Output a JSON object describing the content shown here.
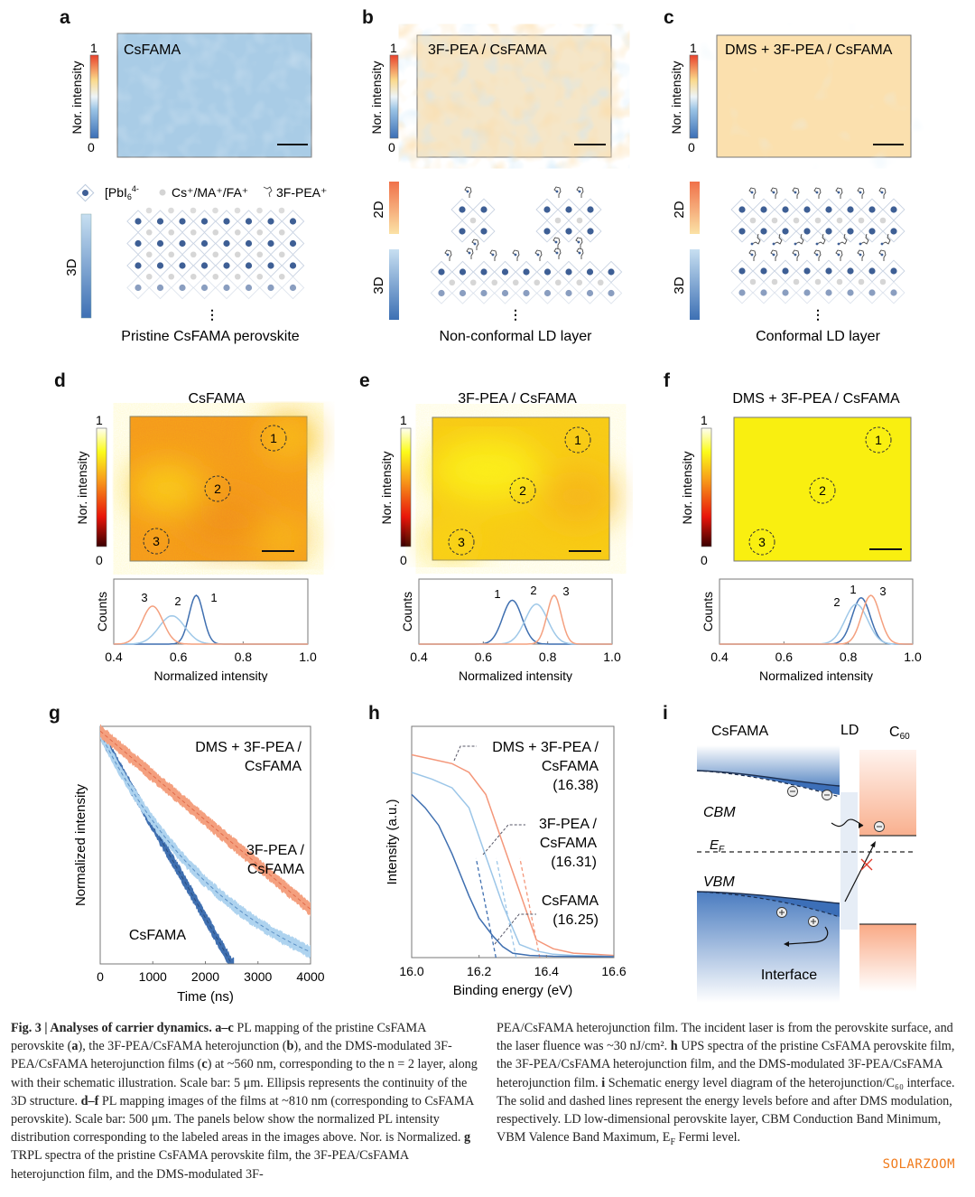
{
  "panels": {
    "a": {
      "label": "a",
      "title": "CsFAMA",
      "cbar_label": "Nor. intensity",
      "cbar_max": "1",
      "cbar_min": "0",
      "schematic_caption": "Pristine CsFAMA perovskite",
      "bar_labels": [
        "3D"
      ],
      "ellipsis": "⋮"
    },
    "b": {
      "label": "b",
      "title": "3F-PEA / CsFAMA",
      "cbar_label": "Nor. intensity",
      "cbar_max": "1",
      "cbar_min": "0",
      "schematic_caption": "Non-conformal LD layer",
      "bar_labels": [
        "2D",
        "3D"
      ],
      "ellipsis": "⋮"
    },
    "c": {
      "label": "c",
      "title": "DMS + 3F-PEA / CsFAMA",
      "cbar_label": "Nor. intensity",
      "cbar_max": "1",
      "cbar_min": "0",
      "schematic_caption": "Conformal LD layer",
      "bar_labels": [
        "2D",
        "3D"
      ],
      "ellipsis": "⋮"
    },
    "d": {
      "label": "d",
      "title": "CsFAMA",
      "cbar_label": "Nor. intensity",
      "cbar_max": "1",
      "cbar_min": "0",
      "regions": [
        "1",
        "2",
        "3"
      ]
    },
    "e": {
      "label": "e",
      "title": "3F-PEA / CsFAMA",
      "cbar_label": "Nor. intensity",
      "cbar_max": "1",
      "cbar_min": "0",
      "regions": [
        "1",
        "2",
        "3"
      ]
    },
    "f": {
      "label": "f",
      "title": "DMS + 3F-PEA / CsFAMA",
      "cbar_label": "Nor. intensity",
      "cbar_max": "1",
      "cbar_min": "0",
      "regions": [
        "1",
        "2",
        "3"
      ]
    },
    "g": {
      "label": "g"
    },
    "h": {
      "label": "h"
    },
    "i": {
      "label": "i",
      "columns": [
        "CsFAMA",
        "LD",
        "C"
      ],
      "c60_sub": "60",
      "cbm": "CBM",
      "vbm": "VBM",
      "ef": "E",
      "ef_sub": "F",
      "interface": "Interface",
      "electron": "−",
      "hole": "+"
    }
  },
  "legend": {
    "pbi6": "[PbI",
    "pbi6_sub": "6",
    "pbi6_sup": "4-",
    "cation": "Cs⁺/MA⁺/FA⁺",
    "spacer": "3F-PEA⁺"
  },
  "colors": {
    "blue_dark": "#3f6fb0",
    "blue_light": "#9fc8e8",
    "orange": "#f4a07f",
    "orange_dark": "#f07a5a"
  },
  "chart_data": [
    {
      "id": "d-hist",
      "type": "line",
      "xlabel": "Normalized intensity",
      "ylabel": "Counts",
      "xlim": [
        0.4,
        1.0
      ],
      "xticks": [
        "0.4",
        "0.6",
        "0.8",
        "1.0"
      ],
      "series": [
        {
          "name": "1",
          "color": "#3f6fb0",
          "peak": 0.655,
          "width": 0.022,
          "height": 1.0
        },
        {
          "name": "2",
          "color": "#9fc8e8",
          "peak": 0.58,
          "width": 0.04,
          "height": 0.58
        },
        {
          "name": "3",
          "color": "#f4a07f",
          "peak": 0.52,
          "width": 0.032,
          "height": 0.78
        }
      ]
    },
    {
      "id": "e-hist",
      "type": "line",
      "xlabel": "Normalized intensity",
      "ylabel": "Counts",
      "xlim": [
        0.4,
        1.0
      ],
      "xticks": [
        "0.4",
        "0.6",
        "0.8",
        "1.0"
      ],
      "series": [
        {
          "name": "1",
          "color": "#3f6fb0",
          "peak": 0.69,
          "width": 0.03,
          "height": 0.9
        },
        {
          "name": "2",
          "color": "#9fc8e8",
          "peak": 0.765,
          "width": 0.035,
          "height": 0.82
        },
        {
          "name": "3",
          "color": "#f4a07f",
          "peak": 0.82,
          "width": 0.022,
          "height": 1.0
        }
      ]
    },
    {
      "id": "f-hist",
      "type": "line",
      "xlabel": "Normalized intensity",
      "ylabel": "Counts",
      "xlim": [
        0.4,
        1.0
      ],
      "xticks": [
        "0.4",
        "0.6",
        "0.8",
        "1.0"
      ],
      "series": [
        {
          "name": "1",
          "color": "#3f6fb0",
          "peak": 0.84,
          "width": 0.028,
          "height": 0.95
        },
        {
          "name": "2",
          "color": "#9fc8e8",
          "peak": 0.825,
          "width": 0.035,
          "height": 0.82
        },
        {
          "name": "3",
          "color": "#f4a07f",
          "peak": 0.87,
          "width": 0.028,
          "height": 1.0
        }
      ]
    },
    {
      "id": "g-trpl",
      "type": "scatter",
      "title": "",
      "xlabel": "Time (ns)",
      "ylabel": "Normalized intensity",
      "xlim": [
        0,
        4000
      ],
      "xticks": [
        "0",
        "1000",
        "2000",
        "3000",
        "4000"
      ],
      "ylim_log_decades": 1,
      "series": [
        {
          "name": "DMS + 3F-PEA / CsFAMA",
          "label_lines": [
            "DMS + 3F-PEA /",
            "CsFAMA"
          ],
          "color": "#f4a07f",
          "fit_color": "#e06a4a",
          "y_start": 0.98,
          "y_end_at_4000": 0.23
        },
        {
          "name": "3F-PEA / CsFAMA",
          "label_lines": [
            "3F-PEA /",
            "CsFAMA"
          ],
          "color": "#aed3ef",
          "fit_color": "#5a8fc4",
          "y_start": 0.97,
          "y_end_at_4000": 0.05
        },
        {
          "name": "CsFAMA",
          "label_lines": [
            "CsFAMA"
          ],
          "color": "#3f6fb0",
          "fit_color": "#2a4f80",
          "y_start": 0.95,
          "y_end_at": [
            2500,
            0.0
          ]
        }
      ]
    },
    {
      "id": "h-ups",
      "type": "line",
      "xlabel": "Binding energy (eV)",
      "ylabel": "Intensity (a.u.)",
      "xlim": [
        16.0,
        16.6
      ],
      "xticks": [
        "16.0",
        "16.2",
        "16.4",
        "16.6"
      ],
      "series": [
        {
          "name": "DMS + 3F-PEA / CsFAMA",
          "label_lines": [
            "DMS + 3F-PEA /",
            "CsFAMA",
            "(16.38)"
          ],
          "cutoff": 16.38,
          "color": "#f4977a",
          "x": [
            16.0,
            16.06,
            16.12,
            16.17,
            16.22,
            16.27,
            16.32,
            16.37,
            16.42,
            16.48,
            16.54,
            16.6
          ],
          "y": [
            0.92,
            0.9,
            0.88,
            0.84,
            0.74,
            0.52,
            0.3,
            0.08,
            0.04,
            0.02,
            0.015,
            0.01
          ]
        },
        {
          "name": "3F-PEA / CsFAMA",
          "label_lines": [
            "3F-PEA /",
            "CsFAMA",
            "(16.31)"
          ],
          "cutoff": 16.31,
          "color": "#9cc6e8",
          "x": [
            16.0,
            16.06,
            16.12,
            16.17,
            16.22,
            16.27,
            16.32,
            16.37,
            16.42,
            16.48,
            16.54,
            16.6
          ],
          "y": [
            0.84,
            0.81,
            0.77,
            0.68,
            0.46,
            0.24,
            0.06,
            0.03,
            0.015,
            0.01,
            0.008,
            0.005
          ]
        },
        {
          "name": "CsFAMA",
          "label_lines": [
            "CsFAMA",
            "(16.25)"
          ],
          "cutoff": 16.25,
          "color": "#3f6fb0",
          "x": [
            16.0,
            16.04,
            16.08,
            16.12,
            16.17,
            16.2,
            16.24,
            16.27,
            16.3,
            16.35,
            16.42,
            16.6
          ],
          "y": [
            0.74,
            0.68,
            0.6,
            0.47,
            0.28,
            0.18,
            0.1,
            0.05,
            0.02,
            0.01,
            0.006,
            0.004
          ]
        }
      ]
    }
  ],
  "caption": {
    "left": [
      {
        "t": "Fig. 3 | Analyses of carrier dynamics.",
        "b": true
      },
      {
        "t": " "
      },
      {
        "t": "a–c",
        "b": true
      },
      {
        "t": " PL mapping of the pristine CsFAMA perovskite ("
      },
      {
        "t": "a",
        "b": true
      },
      {
        "t": "), the 3F-PEA/CsFAMA heterojunction ("
      },
      {
        "t": "b",
        "b": true
      },
      {
        "t": "), and the DMS-modulated 3F-PEA/CsFAMA heterojunction films ("
      },
      {
        "t": "c",
        "b": true
      },
      {
        "t": ") at ~560 nm, corresponding to the n = 2 layer, along with their schematic illustration. Scale bar: 5 μm. Ellipsis represents the continuity of the 3D structure. "
      },
      {
        "t": "d–f",
        "b": true
      },
      {
        "t": " PL mapping images of the films at ~810 nm (corresponding to CsFAMA perovskite). Scale bar: 500 μm. The panels below show the normalized PL intensity distribution corresponding to the labeled areas in the images above. Nor. is Normalized. "
      },
      {
        "t": "g",
        "b": true
      },
      {
        "t": " TRPL spectra of the pristine CsFAMA per­ovskite film, the 3F-PEA/CsFAMA heterojunction film, and the DMS-modulated 3F-"
      }
    ],
    "right": [
      {
        "t": "PEA/CsFAMA heterojunction film. The incident laser is from the perovskite surface, and the laser fluence was ~30 nJ/cm². "
      },
      {
        "t": "h",
        "b": true
      },
      {
        "t": " UPS spectra of the pristine CsFAMA per­ovskite film, the 3F-PEA/CsFAMA heterojunction film, and the DMS-modulated 3F-PEA/CsFAMA heterojunction film. "
      },
      {
        "t": "i",
        "b": true
      },
      {
        "t": " Schematic energy level diagram of the hetero­junction/C₆₀ interface. The solid and dashed lines represent the energy levels before and after DMS modulation, respectively. LD low-dimensional perovskite layer, CBM Conduction Band Minimum, VBM Valence Band Maximum, E"
      },
      {
        "t": "F",
        "sub": true
      },
      {
        "t": " Fermi level."
      }
    ]
  },
  "watermark": "SOLARZOOM"
}
